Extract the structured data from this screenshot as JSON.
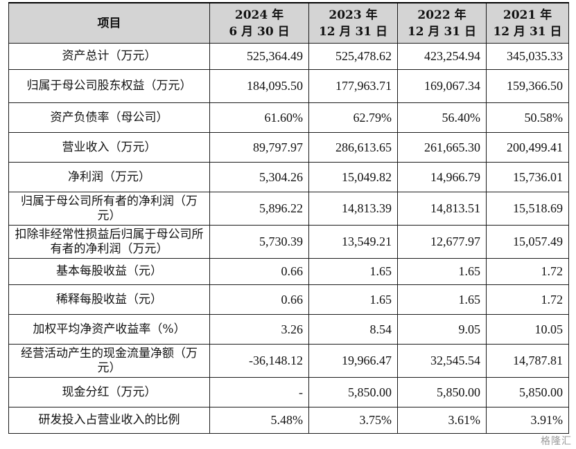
{
  "table": {
    "header": {
      "item": "项目",
      "cols": [
        {
          "line1": "2024 年",
          "line2": "6 月 30 日"
        },
        {
          "line1": "2023 年",
          "line2": "12 月 31 日"
        },
        {
          "line1": "2022 年",
          "line2": "12 月 31 日"
        },
        {
          "line1": "2021 年",
          "line2": "12 月 31 日"
        }
      ]
    },
    "rows": [
      {
        "label": "资产总计（万元）",
        "values": [
          "525,364.49",
          "525,478.62",
          "423,254.94",
          "345,035.33"
        ]
      },
      {
        "label": "归属于母公司股东权益（万元）",
        "values": [
          "184,095.50",
          "177,963.71",
          "169,067.34",
          "159,366.50"
        ]
      },
      {
        "label": "资产负债率（母公司）",
        "values": [
          "61.60%",
          "62.79%",
          "56.40%",
          "50.58%"
        ]
      },
      {
        "label": "营业收入（万元）",
        "values": [
          "89,797.97",
          "286,613.65",
          "261,665.30",
          "200,499.41"
        ]
      },
      {
        "label": "净利润（万元）",
        "values": [
          "5,304.26",
          "15,049.82",
          "14,966.79",
          "15,736.01"
        ]
      },
      {
        "label": "归属于母公司所有者的净利润（万元）",
        "values": [
          "5,896.22",
          "14,813.39",
          "14,813.51",
          "15,518.69"
        ]
      },
      {
        "label": "扣除非经常性损益后归属于母公司所有者的净利润（万元）",
        "values": [
          "5,730.39",
          "13,549.21",
          "12,677.97",
          "15,057.49"
        ]
      },
      {
        "label": "基本每股收益（元）",
        "values": [
          "0.66",
          "1.65",
          "1.65",
          "1.72"
        ]
      },
      {
        "label": "稀释每股收益（元）",
        "values": [
          "0.66",
          "1.65",
          "1.65",
          "1.72"
        ]
      },
      {
        "label": "加权平均净资产收益率（%）",
        "values": [
          "3.26",
          "8.54",
          "9.05",
          "10.05"
        ]
      },
      {
        "label": "经营活动产生的现金流量净额（万元）",
        "values": [
          "-36,148.12",
          "19,966.47",
          "32,545.54",
          "14,787.81"
        ]
      },
      {
        "label": "现金分红（万元）",
        "values": [
          "-",
          "5,850.00",
          "5,850.00",
          "5,850.00"
        ]
      },
      {
        "label": "研发投入占营业收入的比例",
        "values": [
          "5.48%",
          "3.75%",
          "3.61%",
          "3.91%"
        ]
      }
    ]
  },
  "watermark": "格隆汇"
}
